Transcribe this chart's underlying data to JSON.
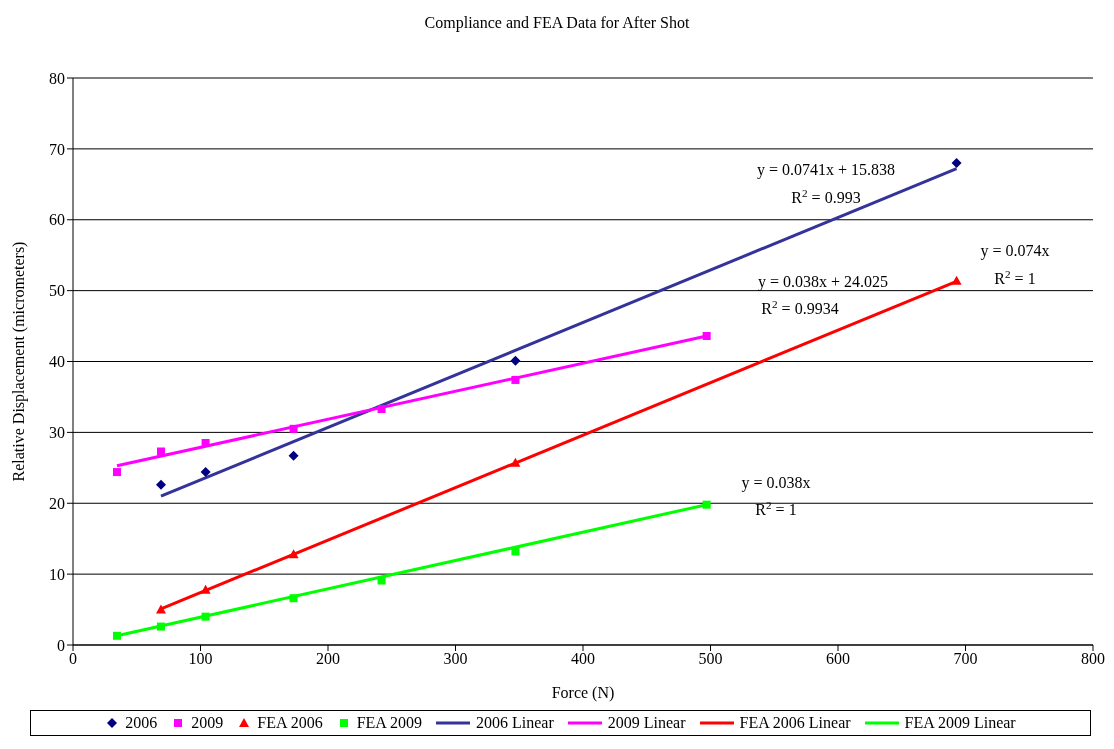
{
  "chart_data": {
    "type": "scatter",
    "title": "Compliance and FEA Data for After Shot",
    "xlabel": "Force (N)",
    "ylabel": "Relative Displacement (micrometers)",
    "xlim": [
      0,
      800
    ],
    "xticks": [
      0,
      100,
      200,
      300,
      400,
      500,
      600,
      700,
      800
    ],
    "ylim": [
      0,
      80
    ],
    "yticks": [
      0,
      10,
      20,
      30,
      40,
      50,
      60,
      70,
      80
    ],
    "grid": "y",
    "legend": "bottom",
    "series": [
      {
        "name": "2006",
        "type": "scatter",
        "marker": "diamond",
        "color": "#000080",
        "x": [
          69,
          104,
          173,
          347,
          693
        ],
        "values": [
          22.6,
          24.4,
          26.7,
          40.1,
          68.0
        ]
      },
      {
        "name": "2009",
        "type": "scatter",
        "marker": "square",
        "color": "#ff00ff",
        "x": [
          34.5,
          69,
          104,
          173,
          242,
          347,
          497
        ],
        "values": [
          24.4,
          27.3,
          28.5,
          30.5,
          33.3,
          37.4,
          43.6
        ]
      },
      {
        "name": "FEA 2006",
        "type": "scatter",
        "marker": "triangle",
        "color": "#ff0000",
        "x": [
          69,
          104,
          173,
          347,
          693
        ],
        "values": [
          5.0,
          7.8,
          12.8,
          25.7,
          51.4
        ]
      },
      {
        "name": "FEA 2009",
        "type": "scatter",
        "marker": "square",
        "color": "#00ff00",
        "x": [
          34.5,
          69,
          104,
          173,
          242,
          347,
          497
        ],
        "values": [
          1.3,
          2.6,
          4.0,
          6.6,
          9.1,
          13.2,
          19.8
        ]
      },
      {
        "name": "2006 Linear",
        "type": "line",
        "marker": "none",
        "color": "#333399",
        "x": [
          69,
          693
        ],
        "values": [
          21.0,
          67.2
        ]
      },
      {
        "name": "2009 Linear",
        "type": "line",
        "marker": "none",
        "color": "#ff00ff",
        "x": [
          34.5,
          497
        ],
        "values": [
          25.3,
          43.6
        ]
      },
      {
        "name": "FEA 2006 Linear",
        "type": "line",
        "marker": "none",
        "color": "#ff0000",
        "x": [
          69,
          693
        ],
        "values": [
          5.1,
          51.3
        ]
      },
      {
        "name": "FEA 2009 Linear",
        "type": "line",
        "marker": "none",
        "color": "#00ff00",
        "x": [
          34.5,
          497
        ],
        "values": [
          1.3,
          19.8
        ]
      }
    ],
    "annotations": [
      "y = 0.0741x + 15.838",
      "R$^{2}$ = 0.993",
      "y = 0.038x + 24.025",
      "R$^{2}$ = 0.9934",
      "y = 0.074x",
      "R$^{2}$ = 1",
      "y = 0.038x",
      "R$^{2}$ = 1"
    ]
  }
}
